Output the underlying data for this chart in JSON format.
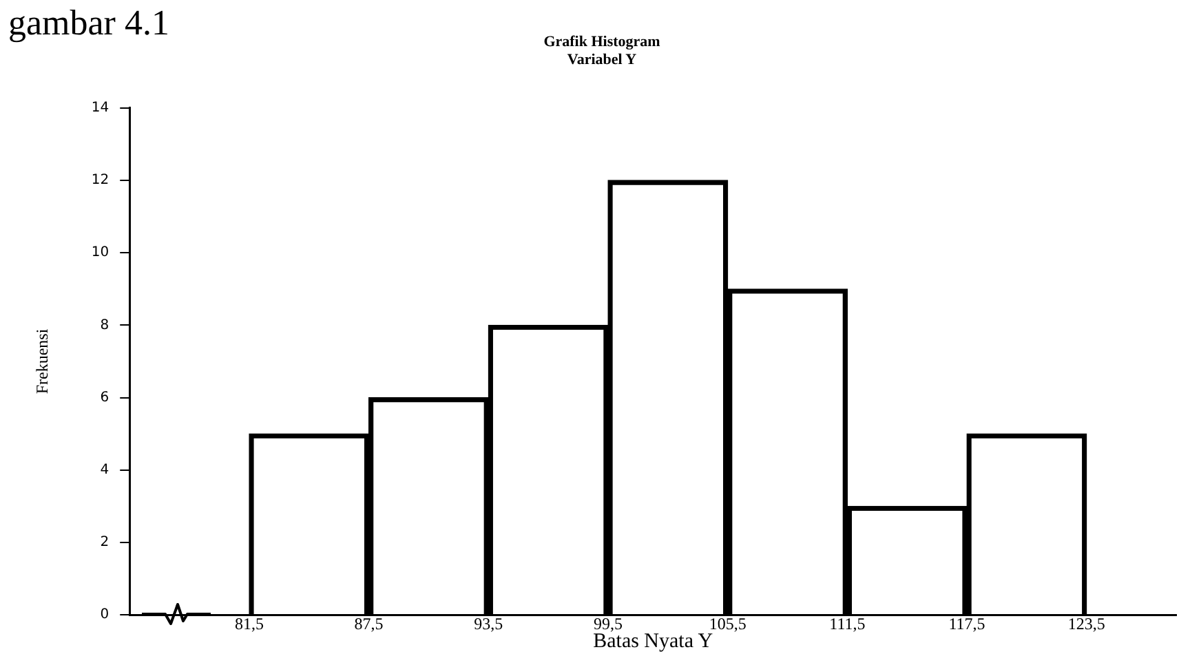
{
  "chart_data": {
    "type": "histogram",
    "title": "Grafik Histogram",
    "subtitle": "Variabel Y",
    "annotations": [
      "gambar 4.1"
    ],
    "xlabel": "Batas Nyata Y",
    "ylabel": "Frekuensi",
    "bins": [
      81.5,
      87.5,
      93.5,
      99.5,
      105.5,
      111.5,
      117.5,
      123.5
    ],
    "values": [
      5,
      6,
      8,
      12,
      9,
      3,
      5
    ],
    "color": "#000000",
    "xlim": [
      75.5,
      128
    ],
    "xticks": [
      {
        "value": 81.5,
        "label": "81,5"
      },
      {
        "value": 87.5,
        "label": "87,5"
      },
      {
        "value": 93.5,
        "label": "93,5"
      },
      {
        "value": 99.5,
        "label": "99,5"
      },
      {
        "value": 105.5,
        "label": "105,5"
      },
      {
        "value": 111.5,
        "label": "111,5"
      },
      {
        "value": 117.5,
        "label": "117,5"
      },
      {
        "value": 123.5,
        "label": "123,5"
      }
    ],
    "ylim": [
      0,
      14
    ],
    "yticks": [
      0,
      2,
      4,
      6,
      8,
      10,
      12,
      14
    ],
    "grid": false,
    "legend": false
  }
}
